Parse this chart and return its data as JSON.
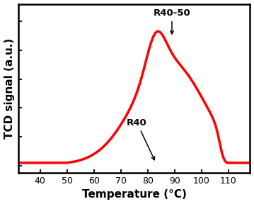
{
  "xlabel": "Temperature (°C)",
  "ylabel": "TCD signal (a.u.)",
  "xlim": [
    32,
    118
  ],
  "ylim": [
    -0.05,
    1.12
  ],
  "xticks": [
    40,
    50,
    60,
    70,
    80,
    90,
    100,
    110
  ],
  "line_color": "#ff0000",
  "line_width": 2.5,
  "label_R40_50": "R40-50",
  "label_R40": "R40",
  "font_size_axis_label": 11,
  "font_size_tick": 9,
  "font_size_annotation": 9.5,
  "background_color": "#ffffff"
}
